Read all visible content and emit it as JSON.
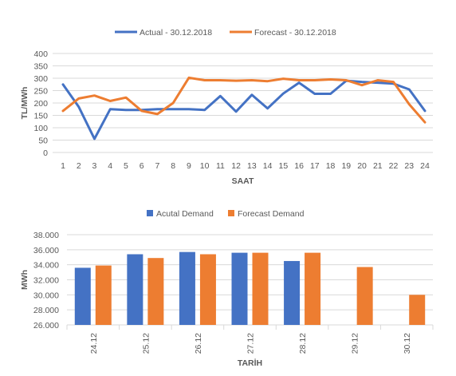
{
  "chart_data": [
    {
      "type": "line",
      "title": "",
      "xlabel": "SAAT",
      "ylabel": "TL/MWh",
      "ylim": [
        0,
        400
      ],
      "y_ticks": [
        0,
        50,
        100,
        150,
        200,
        250,
        300,
        350,
        400
      ],
      "grid": true,
      "legend": "top-center",
      "categories": [
        "1",
        "2",
        "3",
        "4",
        "5",
        "6",
        "7",
        "8",
        "9",
        "10",
        "11",
        "12",
        "13",
        "14",
        "15",
        "16",
        "17",
        "18",
        "19",
        "20",
        "21",
        "22",
        "23",
        "24"
      ],
      "series": [
        {
          "name": "Actual - 30.12.2018",
          "color": "#4472C4",
          "values": [
            275,
            185,
            55,
            175,
            172,
            172,
            175,
            175,
            175,
            172,
            228,
            165,
            233,
            178,
            238,
            282,
            237,
            237,
            290,
            285,
            282,
            278,
            255,
            168
          ]
        },
        {
          "name": "Forecast - 30.12.2018",
          "color": "#ED7D31",
          "values": [
            168,
            218,
            230,
            208,
            222,
            168,
            155,
            200,
            302,
            292,
            292,
            290,
            292,
            288,
            298,
            292,
            292,
            295,
            292,
            272,
            292,
            285,
            195,
            122
          ]
        }
      ]
    },
    {
      "type": "bar",
      "title": "",
      "xlabel": "TARİH",
      "ylabel": "MWh",
      "ylim": [
        26000,
        38000
      ],
      "y_ticks": [
        "26.000",
        "28.000",
        "30.000",
        "32.000",
        "34.000",
        "36.000",
        "38.000"
      ],
      "y_tick_values": [
        26000,
        28000,
        30000,
        32000,
        34000,
        36000,
        38000
      ],
      "grid": true,
      "legend": "top-center",
      "categories": [
        "24.12",
        "25.12",
        "26.12",
        "27.12",
        "28.12",
        "29.12",
        "30.12"
      ],
      "series": [
        {
          "name": "Acutal Demand",
          "color": "#4472C4",
          "values": [
            33600,
            35400,
            35700,
            35600,
            34500,
            null,
            null
          ]
        },
        {
          "name": "Forecast Demand",
          "color": "#ED7D31",
          "values": [
            33900,
            34900,
            35400,
            35600,
            35600,
            33700,
            30000
          ]
        }
      ]
    }
  ]
}
